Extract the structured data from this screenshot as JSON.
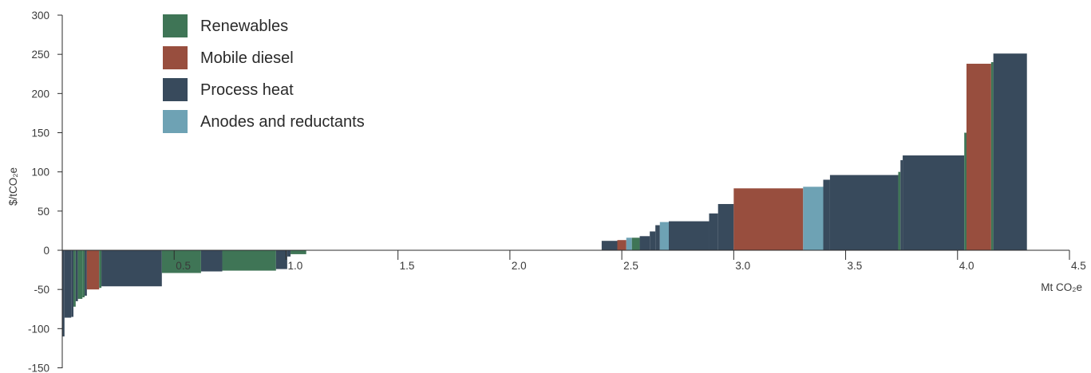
{
  "chart_data": {
    "type": "bar",
    "subtype": "marginal-abatement-cost-curve",
    "title": "",
    "xlabel": "Mt CO₂e",
    "ylabel": "$/tCO₂e",
    "xlim": [
      0,
      4.5
    ],
    "ylim": [
      -150,
      300
    ],
    "x_ticks": [
      "0.5",
      "1.0",
      "1.5",
      "2.0",
      "2.5",
      "3.0",
      "3.5",
      "4.0",
      "4.5"
    ],
    "x_tick_values": [
      0.5,
      1.0,
      1.5,
      2.0,
      2.5,
      3.0,
      3.5,
      4.0,
      4.5
    ],
    "y_ticks": [
      "300",
      "250",
      "200",
      "150",
      "100",
      "50",
      "0",
      "-50",
      "-100",
      "-150"
    ],
    "y_tick_values": [
      300,
      250,
      200,
      150,
      100,
      50,
      0,
      -50,
      -100,
      -150
    ],
    "grid": false,
    "legend_position": "top-left",
    "series": [
      {
        "name": "Renewables",
        "color": "#3f7556"
      },
      {
        "name": "Mobile diesel",
        "color": "#984e3e"
      },
      {
        "name": "Process heat",
        "color": "#384a5c"
      },
      {
        "name": "Anodes and reductants",
        "color": "#6ea2b4"
      }
    ],
    "bars": [
      {
        "series": "Process heat",
        "x0": 0.0,
        "x1": 0.01,
        "y": -110
      },
      {
        "series": "Process heat",
        "x0": 0.01,
        "x1": 0.04,
        "y": -86
      },
      {
        "series": "Process heat",
        "x0": 0.04,
        "x1": 0.05,
        "y": -85
      },
      {
        "series": "Renewables",
        "x0": 0.05,
        "x1": 0.06,
        "y": -72
      },
      {
        "series": "Process heat",
        "x0": 0.06,
        "x1": 0.07,
        "y": -65
      },
      {
        "series": "Renewables",
        "x0": 0.07,
        "x1": 0.09,
        "y": -62
      },
      {
        "series": "Renewables",
        "x0": 0.09,
        "x1": 0.1,
        "y": -60
      },
      {
        "series": "Process heat",
        "x0": 0.1,
        "x1": 0.11,
        "y": -58
      },
      {
        "series": "Mobile diesel",
        "x0": 0.11,
        "x1": 0.165,
        "y": -50
      },
      {
        "series": "Renewables",
        "x0": 0.165,
        "x1": 0.175,
        "y": -48
      },
      {
        "series": "Process heat",
        "x0": 0.175,
        "x1": 0.445,
        "y": -46
      },
      {
        "series": "Renewables",
        "x0": 0.445,
        "x1": 0.62,
        "y": -29
      },
      {
        "series": "Process heat",
        "x0": 0.62,
        "x1": 0.715,
        "y": -27
      },
      {
        "series": "Renewables",
        "x0": 0.715,
        "x1": 0.955,
        "y": -26
      },
      {
        "series": "Process heat",
        "x0": 0.955,
        "x1": 1.005,
        "y": -24
      },
      {
        "series": "Process heat",
        "x0": 1.005,
        "x1": 1.02,
        "y": -8
      },
      {
        "series": "Renewables",
        "x0": 1.02,
        "x1": 1.09,
        "y": -5
      },
      {
        "series": "Process heat",
        "x0": 2.41,
        "x1": 2.48,
        "y": 12
      },
      {
        "series": "Mobile diesel",
        "x0": 2.48,
        "x1": 2.52,
        "y": 13
      },
      {
        "series": "Anodes and reductants",
        "x0": 2.52,
        "x1": 2.545,
        "y": 16
      },
      {
        "series": "Renewables",
        "x0": 2.545,
        "x1": 2.58,
        "y": 16
      },
      {
        "series": "Process heat",
        "x0": 2.58,
        "x1": 2.625,
        "y": 18
      },
      {
        "series": "Process heat",
        "x0": 2.625,
        "x1": 2.65,
        "y": 24
      },
      {
        "series": "Process heat",
        "x0": 2.65,
        "x1": 2.67,
        "y": 32
      },
      {
        "series": "Anodes and reductants",
        "x0": 2.67,
        "x1": 2.71,
        "y": 36
      },
      {
        "series": "Process heat",
        "x0": 2.71,
        "x1": 2.89,
        "y": 37
      },
      {
        "series": "Process heat",
        "x0": 2.89,
        "x1": 2.93,
        "y": 47
      },
      {
        "series": "Process heat",
        "x0": 2.93,
        "x1": 3.0,
        "y": 59
      },
      {
        "series": "Mobile diesel",
        "x0": 3.0,
        "x1": 3.31,
        "y": 79
      },
      {
        "series": "Anodes and reductants",
        "x0": 3.31,
        "x1": 3.4,
        "y": 81
      },
      {
        "series": "Process heat",
        "x0": 3.4,
        "x1": 3.43,
        "y": 90
      },
      {
        "series": "Process heat",
        "x0": 3.43,
        "x1": 3.735,
        "y": 96
      },
      {
        "series": "Renewables",
        "x0": 3.735,
        "x1": 3.745,
        "y": 100
      },
      {
        "series": "Process heat",
        "x0": 3.745,
        "x1": 3.755,
        "y": 115
      },
      {
        "series": "Process heat",
        "x0": 3.755,
        "x1": 4.03,
        "y": 121
      },
      {
        "series": "Renewables",
        "x0": 4.03,
        "x1": 4.04,
        "y": 150
      },
      {
        "series": "Mobile diesel",
        "x0": 4.04,
        "x1": 4.15,
        "y": 238
      },
      {
        "series": "Renewables",
        "x0": 4.15,
        "x1": 4.16,
        "y": 240
      },
      {
        "series": "Process heat",
        "x0": 4.16,
        "x1": 4.31,
        "y": 251
      }
    ]
  }
}
